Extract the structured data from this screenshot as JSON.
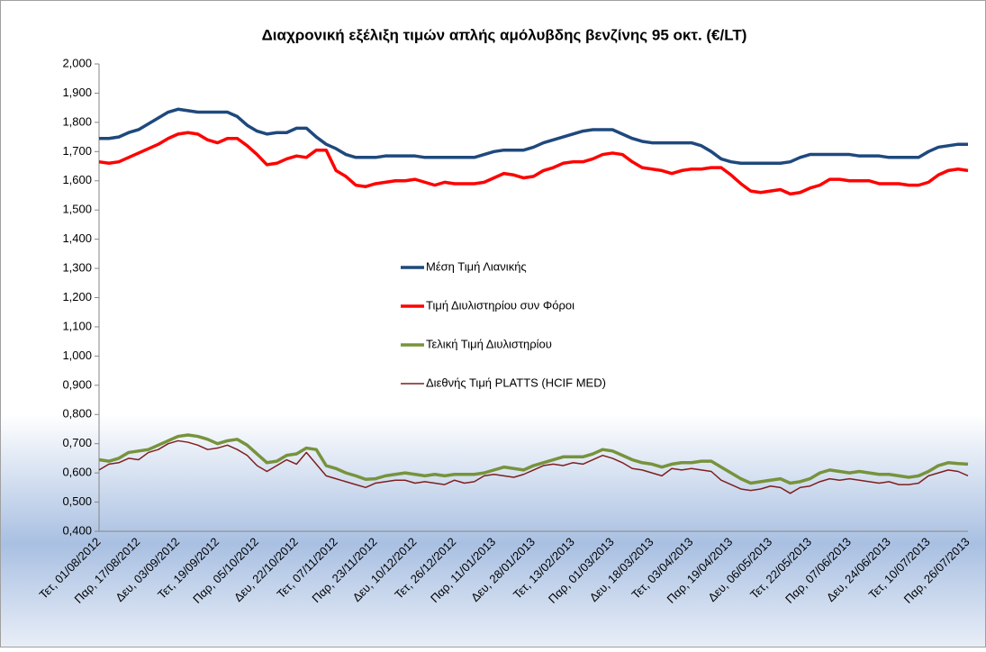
{
  "chart_data": {
    "type": "line",
    "title": "Διαχρονική εξέλιξη τιμών απλής αμόλυβδης βενζίνης 95 οκτ. (€/LT)",
    "categories": [
      "Τετ, 01/08/2012",
      null,
      null,
      null,
      "Παρ, 17/08/2012",
      null,
      null,
      null,
      "Δευ, 03/09/2012",
      null,
      null,
      null,
      "Τετ, 19/09/2012",
      null,
      null,
      null,
      "Παρ, 05/10/2012",
      null,
      null,
      null,
      "Δευ, 22/10/2012",
      null,
      null,
      null,
      "Τετ, 07/11/2012",
      null,
      null,
      null,
      "Παρ, 23/11/2012",
      null,
      null,
      null,
      "Δευ, 10/12/2012",
      null,
      null,
      null,
      "Τετ, 26/12/2012",
      null,
      null,
      null,
      "Παρ, 11/01/2013",
      null,
      null,
      null,
      "Δευ, 28/01/2013",
      null,
      null,
      null,
      "Τετ, 13/02/2013",
      null,
      null,
      null,
      "Παρ, 01/03/2013",
      null,
      null,
      null,
      "Δευ, 18/03/2013",
      null,
      null,
      null,
      "Τετ, 03/04/2013",
      null,
      null,
      null,
      "Παρ, 19/04/2013",
      null,
      null,
      null,
      "Δευ, 06/05/2013",
      null,
      null,
      null,
      "Τετ, 22/05/2013",
      null,
      null,
      null,
      "Παρ, 07/06/2013",
      null,
      null,
      null,
      "Δευ, 24/06/2013",
      null,
      null,
      null,
      "Τετ, 10/07/2013",
      null,
      null,
      null,
      "Παρ, 26/07/2013"
    ],
    "series": [
      {
        "name": "Μέση Τιμή Λιανικής",
        "color": "#1f497d",
        "width": 3.5,
        "values": [
          1.745,
          1.745,
          1.75,
          1.765,
          1.775,
          1.795,
          1.815,
          1.835,
          1.845,
          1.84,
          1.835,
          1.835,
          1.835,
          1.835,
          1.82,
          1.79,
          1.77,
          1.76,
          1.765,
          1.765,
          1.78,
          1.78,
          1.75,
          1.725,
          1.71,
          1.69,
          1.68,
          1.68,
          1.68,
          1.685,
          1.685,
          1.685,
          1.685,
          1.68,
          1.68,
          1.68,
          1.68,
          1.68,
          1.68,
          1.69,
          1.7,
          1.705,
          1.705,
          1.705,
          1.715,
          1.73,
          1.74,
          1.75,
          1.76,
          1.77,
          1.775,
          1.775,
          1.775,
          1.76,
          1.745,
          1.735,
          1.73,
          1.73,
          1.73,
          1.73,
          1.73,
          1.72,
          1.7,
          1.675,
          1.665,
          1.66,
          1.66,
          1.66,
          1.66,
          1.66,
          1.665,
          1.68,
          1.69,
          1.69,
          1.69,
          1.69,
          1.69,
          1.685,
          1.685,
          1.685,
          1.68,
          1.68,
          1.68,
          1.68,
          1.7,
          1.715,
          1.72,
          1.725,
          1.725
        ]
      },
      {
        "name": "Τιμή Διυλιστηρίου συν Φόροι",
        "color": "#ff0000",
        "width": 3.5,
        "values": [
          1.665,
          1.66,
          1.665,
          1.68,
          1.695,
          1.71,
          1.725,
          1.745,
          1.76,
          1.765,
          1.76,
          1.74,
          1.73,
          1.745,
          1.745,
          1.72,
          1.69,
          1.655,
          1.66,
          1.675,
          1.685,
          1.68,
          1.705,
          1.705,
          1.635,
          1.615,
          1.585,
          1.58,
          1.59,
          1.595,
          1.6,
          1.6,
          1.605,
          1.595,
          1.585,
          1.595,
          1.59,
          1.59,
          1.59,
          1.595,
          1.61,
          1.625,
          1.62,
          1.61,
          1.615,
          1.635,
          1.645,
          1.66,
          1.665,
          1.665,
          1.675,
          1.69,
          1.695,
          1.69,
          1.665,
          1.645,
          1.64,
          1.635,
          1.625,
          1.635,
          1.64,
          1.64,
          1.645,
          1.645,
          1.62,
          1.59,
          1.565,
          1.56,
          1.565,
          1.57,
          1.555,
          1.56,
          1.575,
          1.585,
          1.605,
          1.605,
          1.6,
          1.6,
          1.6,
          1.59,
          1.59,
          1.59,
          1.585,
          1.585,
          1.595,
          1.62,
          1.635,
          1.64,
          1.635
        ]
      },
      {
        "name": "Τελική Τιμή Διυλιστηρίου",
        "color": "#77933c",
        "width": 3.5,
        "values": [
          0.645,
          0.64,
          0.65,
          0.67,
          0.675,
          0.68,
          0.695,
          0.71,
          0.725,
          0.73,
          0.725,
          0.715,
          0.7,
          0.71,
          0.715,
          0.695,
          0.665,
          0.635,
          0.64,
          0.66,
          0.665,
          0.685,
          0.68,
          0.625,
          0.615,
          0.6,
          0.59,
          0.578,
          0.58,
          0.59,
          0.595,
          0.6,
          0.595,
          0.59,
          0.595,
          0.59,
          0.595,
          0.595,
          0.595,
          0.6,
          0.61,
          0.62,
          0.615,
          0.61,
          0.625,
          0.635,
          0.645,
          0.655,
          0.655,
          0.655,
          0.665,
          0.68,
          0.675,
          0.66,
          0.645,
          0.635,
          0.63,
          0.62,
          0.63,
          0.635,
          0.635,
          0.64,
          0.64,
          0.62,
          0.6,
          0.58,
          0.565,
          0.57,
          0.575,
          0.58,
          0.565,
          0.57,
          0.58,
          0.6,
          0.61,
          0.605,
          0.6,
          0.605,
          0.6,
          0.595,
          0.595,
          0.59,
          0.585,
          0.59,
          0.605,
          0.625,
          0.635,
          0.632,
          0.63
        ]
      },
      {
        "name": "Διεθνής Τιμή PLATTS (HCIF MED)",
        "color": "#7f1f1f",
        "width": 1.5,
        "values": [
          0.61,
          0.63,
          0.635,
          0.65,
          0.645,
          0.67,
          0.68,
          0.7,
          0.71,
          0.705,
          0.695,
          0.68,
          0.685,
          0.695,
          0.68,
          0.66,
          0.625,
          0.605,
          0.625,
          0.645,
          0.63,
          0.67,
          0.63,
          0.59,
          0.58,
          0.57,
          0.56,
          0.55,
          0.565,
          0.57,
          0.575,
          0.575,
          0.565,
          0.57,
          0.565,
          0.56,
          0.575,
          0.565,
          0.57,
          0.59,
          0.595,
          0.59,
          0.585,
          0.595,
          0.61,
          0.625,
          0.63,
          0.625,
          0.635,
          0.63,
          0.645,
          0.66,
          0.65,
          0.635,
          0.615,
          0.61,
          0.6,
          0.59,
          0.615,
          0.61,
          0.615,
          0.61,
          0.605,
          0.575,
          0.56,
          0.545,
          0.54,
          0.545,
          0.555,
          0.55,
          0.53,
          0.55,
          0.555,
          0.57,
          0.58,
          0.575,
          0.58,
          0.575,
          0.57,
          0.565,
          0.57,
          0.56,
          0.56,
          0.565,
          0.59,
          0.6,
          0.61,
          0.605,
          0.59
        ]
      }
    ],
    "ylim": [
      0.4,
      2.0
    ],
    "yticks": [
      {
        "value": 0.4,
        "label": "0,400"
      },
      {
        "value": 0.5,
        "label": "0,500"
      },
      {
        "value": 0.6,
        "label": "0,600"
      },
      {
        "value": 0.7,
        "label": "0,700"
      },
      {
        "value": 0.8,
        "label": "0,800"
      },
      {
        "value": 0.9,
        "label": "0,900"
      },
      {
        "value": 1.0,
        "label": "1,000"
      },
      {
        "value": 1.1,
        "label": "1,100"
      },
      {
        "value": 1.2,
        "label": "1,200"
      },
      {
        "value": 1.3,
        "label": "1,300"
      },
      {
        "value": 1.4,
        "label": "1,400"
      },
      {
        "value": 1.5,
        "label": "1,500"
      },
      {
        "value": 1.6,
        "label": "1,600"
      },
      {
        "value": 1.7,
        "label": "1,700"
      },
      {
        "value": 1.8,
        "label": "1,800"
      },
      {
        "value": 1.9,
        "label": "1,900"
      },
      {
        "value": 2.0,
        "label": "2,000"
      }
    ],
    "grid": false,
    "legend": "center"
  }
}
